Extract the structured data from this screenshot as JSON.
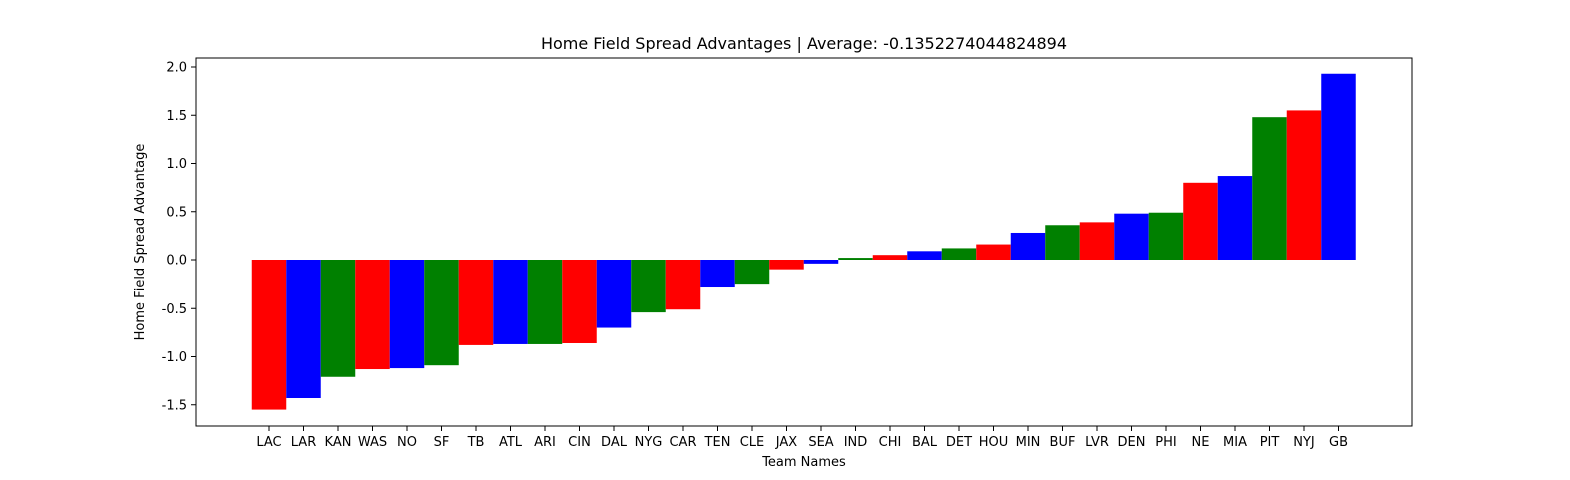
{
  "chart_data": {
    "type": "bar",
    "title": "Home Field Spread Advantages | Average: -0.1352274044824894",
    "xlabel": "Team Names",
    "ylabel": "Home Field Spread Advantage",
    "ylim": [
      -1.75,
      2.1
    ],
    "yticks": [
      "-1.5",
      "-1.0",
      "-0.5",
      "0.0",
      "0.5",
      "1.0",
      "1.5",
      "2.0"
    ],
    "grid": false,
    "colors": [
      "#ff0000",
      "#0000ff",
      "#008000"
    ],
    "categories": [
      "LAC",
      "LAR",
      "KAN",
      "WAS",
      "NO",
      "SF",
      "TB",
      "ATL",
      "ARI",
      "CIN",
      "DAL",
      "NYG",
      "CAR",
      "TEN",
      "CLE",
      "JAX",
      "SEA",
      "IND",
      "CHI",
      "BAL",
      "DET",
      "HOU",
      "MIN",
      "BUF",
      "LVR",
      "DEN",
      "PHI",
      "NE",
      "MIA",
      "PIT",
      "NYJ",
      "GB"
    ],
    "values": [
      -1.55,
      -1.43,
      -1.21,
      -1.13,
      -1.12,
      -1.09,
      -0.88,
      -0.87,
      -0.87,
      -0.86,
      -0.7,
      -0.54,
      -0.51,
      -0.28,
      -0.25,
      -0.1,
      -0.04,
      0.02,
      0.05,
      0.09,
      0.12,
      0.16,
      0.28,
      0.36,
      0.39,
      0.48,
      0.49,
      0.8,
      0.87,
      1.48,
      1.55,
      1.93
    ]
  }
}
